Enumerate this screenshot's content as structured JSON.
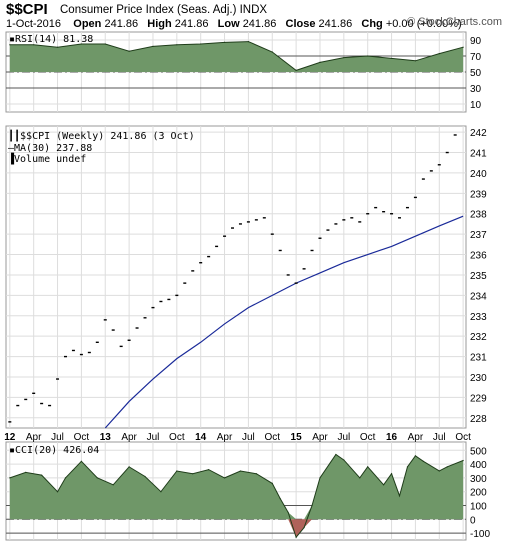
{
  "header": {
    "symbol": "$$CPI",
    "name": "Consumer Price Index (Seas. Adj.) INDX",
    "date": "1-Oct-2016",
    "open_label": "Open",
    "open": "241.86",
    "high_label": "High",
    "high": "241.86",
    "low_label": "Low",
    "low": "241.86",
    "close_label": "Close",
    "close": "241.86",
    "chg_label": "Chg",
    "chg": "+0.00 (+0.00%)",
    "watermark": "© StockCharts.com"
  },
  "rsi_panel": {
    "label": "RSI(14) 81.38",
    "ticks": [
      90,
      70,
      50,
      30,
      10
    ]
  },
  "price_panel": {
    "label_main": "$$CPI (Weekly) 241.86 (3 Oct)",
    "label_ma": "MA(30) 237.88",
    "label_vol": "Volume undef",
    "ticks": [
      242,
      241,
      240,
      239,
      238,
      237,
      236,
      235,
      234,
      233,
      232,
      231,
      230,
      229,
      228
    ]
  },
  "x_axis": {
    "labels": [
      "12",
      "Apr",
      "Jul",
      "Oct",
      "13",
      "Apr",
      "Jul",
      "Oct",
      "14",
      "Apr",
      "Jul",
      "Oct",
      "15",
      "Apr",
      "Jul",
      "Oct",
      "16",
      "Apr",
      "Jul",
      "Oct"
    ],
    "bold": [
      "12",
      "13",
      "14",
      "15",
      "16"
    ]
  },
  "cci_panel": {
    "label": "CCI(20) 426.04",
    "ticks": [
      "500",
      "400",
      "300",
      "200",
      "100",
      "0",
      "-100"
    ]
  },
  "colors": {
    "fill_green": "#6f9768",
    "fill_red": "#b0625a",
    "ma_line": "#1a2a99",
    "grid": "#dddddd"
  },
  "chart_data": [
    {
      "type": "area",
      "title": "RSI(14) 81.38",
      "ylim": [
        0,
        100
      ],
      "reference_lines": [
        70,
        50,
        30
      ],
      "x": [
        "2012-01",
        "2012-04",
        "2012-07",
        "2012-10",
        "2013-01",
        "2013-04",
        "2013-07",
        "2013-10",
        "2014-01",
        "2014-04",
        "2014-07",
        "2014-10",
        "2015-01",
        "2015-04",
        "2015-07",
        "2015-10",
        "2016-01",
        "2016-04",
        "2016-07",
        "2016-10"
      ],
      "values": [
        84,
        84,
        81,
        85,
        85,
        76,
        82,
        84,
        85,
        87,
        88,
        75,
        52,
        62,
        68,
        70,
        67,
        64,
        73,
        81
      ]
    },
    {
      "type": "scatter",
      "title": "$$CPI (Weekly) 241.86 (3 Oct)",
      "ylim": [
        227.5,
        242.3
      ],
      "series": [
        {
          "name": "$$CPI",
          "x": [
            "2012-01",
            "2012-02",
            "2012-03",
            "2012-04",
            "2012-05",
            "2012-06",
            "2012-07",
            "2012-08",
            "2012-09",
            "2012-10",
            "2012-11",
            "2012-12",
            "2013-01",
            "2013-02",
            "2013-03",
            "2013-04",
            "2013-05",
            "2013-06",
            "2013-07",
            "2013-08",
            "2013-09",
            "2013-10",
            "2013-11",
            "2013-12",
            "2014-01",
            "2014-02",
            "2014-03",
            "2014-04",
            "2014-05",
            "2014-06",
            "2014-07",
            "2014-08",
            "2014-09",
            "2014-10",
            "2014-11",
            "2014-12",
            "2015-01",
            "2015-02",
            "2015-03",
            "2015-04",
            "2015-05",
            "2015-06",
            "2015-07",
            "2015-08",
            "2015-09",
            "2015-10",
            "2015-11",
            "2015-12",
            "2016-01",
            "2016-02",
            "2016-03",
            "2016-04",
            "2016-05",
            "2016-06",
            "2016-07",
            "2016-08",
            "2016-09"
          ],
          "values": [
            227.8,
            228.6,
            228.9,
            229.2,
            228.7,
            228.6,
            229.9,
            231.0,
            231.3,
            231.1,
            231.2,
            231.7,
            232.8,
            232.3,
            231.5,
            231.8,
            232.4,
            232.9,
            233.4,
            233.7,
            233.8,
            234.0,
            234.6,
            235.2,
            235.6,
            235.9,
            236.4,
            236.9,
            237.3,
            237.5,
            237.6,
            237.7,
            237.8,
            237.0,
            236.2,
            235.0,
            234.6,
            235.3,
            236.2,
            236.8,
            237.2,
            237.5,
            237.7,
            237.8,
            237.6,
            238.0,
            238.3,
            238.1,
            238.0,
            237.8,
            238.3,
            238.8,
            239.7,
            240.1,
            240.4,
            241.0,
            241.86
          ]
        },
        {
          "name": "MA(30) 237.88",
          "x": [
            "2013-01",
            "2013-04",
            "2013-07",
            "2013-10",
            "2014-01",
            "2014-04",
            "2014-07",
            "2014-10",
            "2015-01",
            "2015-04",
            "2015-07",
            "2015-10",
            "2016-01",
            "2016-04",
            "2016-07",
            "2016-10"
          ],
          "values": [
            227.5,
            228.8,
            229.9,
            230.9,
            231.7,
            232.6,
            233.4,
            234.0,
            234.6,
            235.1,
            235.6,
            236.0,
            236.4,
            236.9,
            237.4,
            237.88
          ]
        }
      ]
    },
    {
      "type": "area",
      "title": "CCI(20) 426.04",
      "ylim": [
        -150,
        560
      ],
      "reference_lines": [
        0,
        -100
      ],
      "x": [
        "2012-01",
        "2012-03",
        "2012-05",
        "2012-07",
        "2012-08",
        "2012-10",
        "2012-12",
        "2013-02",
        "2013-04",
        "2013-06",
        "2013-08",
        "2013-10",
        "2013-12",
        "2014-02",
        "2014-04",
        "2014-06",
        "2014-08",
        "2014-10",
        "2014-11",
        "2014-12",
        "2015-01",
        "2015-02",
        "2015-03",
        "2015-04",
        "2015-06",
        "2015-07",
        "2015-09",
        "2015-10",
        "2015-12",
        "2016-01",
        "2016-02",
        "2016-03",
        "2016-04",
        "2016-05",
        "2016-07",
        "2016-08",
        "2016-10"
      ],
      "values": [
        300,
        340,
        320,
        200,
        300,
        420,
        300,
        250,
        380,
        310,
        200,
        350,
        330,
        360,
        300,
        350,
        330,
        260,
        150,
        50,
        -130,
        -60,
        100,
        300,
        470,
        430,
        300,
        380,
        250,
        330,
        170,
        380,
        460,
        420,
        350,
        380,
        426
      ]
    }
  ]
}
